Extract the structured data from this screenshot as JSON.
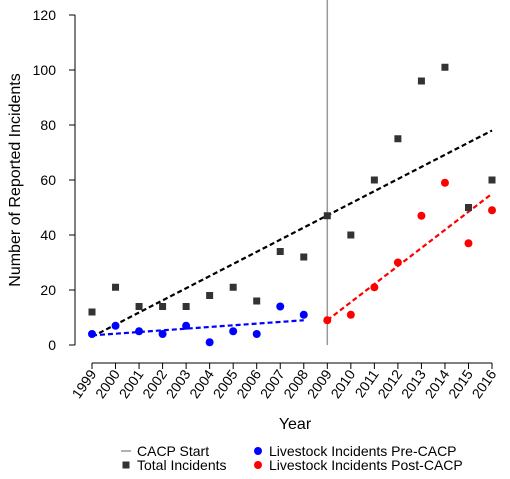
{
  "colors": {
    "total": "#333333",
    "pre": "#0000FF",
    "post": "#FF0000",
    "cacp_line": "#999999",
    "total_trend": "#000000",
    "pre_trend": "#0000FF",
    "post_trend": "#FF0000"
  },
  "chart_data": {
    "type": "scatter",
    "title": "",
    "xlabel": "Year",
    "ylabel": "Number of Reported Incidents",
    "xlim": [
      1999,
      2016
    ],
    "ylim": [
      0,
      120
    ],
    "x_ticks": [
      1999,
      2000,
      2001,
      2002,
      2003,
      2004,
      2005,
      2006,
      2007,
      2008,
      2009,
      2010,
      2011,
      2012,
      2013,
      2014,
      2015,
      2016
    ],
    "x_tick_labels": [
      "1999",
      "2000",
      "2001",
      "2002",
      "2003",
      "2004",
      "2005",
      "2006",
      "2007",
      "2008",
      "2009",
      "2010",
      "2011",
      "2012",
      "2013",
      "2014",
      "2015",
      "2016"
    ],
    "y_ticks": [
      0,
      20,
      40,
      60,
      80,
      100,
      120
    ],
    "y_tick_labels": [
      "0",
      "20",
      "40",
      "60",
      "80",
      "100",
      "120"
    ],
    "grid": false,
    "legend_position": "bottom",
    "cacp_start": 2009,
    "series": [
      {
        "name": "Total Incidents",
        "marker": "square",
        "color": "#333333",
        "x": [
          1999,
          2000,
          2001,
          2002,
          2003,
          2004,
          2005,
          2006,
          2007,
          2008,
          2009,
          2010,
          2011,
          2012,
          2013,
          2014,
          2015,
          2016
        ],
        "y": [
          12,
          21,
          14,
          14,
          14,
          18,
          21,
          16,
          34,
          32,
          47,
          40,
          60,
          75,
          96,
          101,
          50,
          60
        ]
      },
      {
        "name": "Livestock Incidents Pre-CACP",
        "marker": "circle",
        "color": "#0000FF",
        "x": [
          1999,
          2000,
          2001,
          2002,
          2003,
          2004,
          2005,
          2006,
          2007,
          2008
        ],
        "y": [
          4,
          7,
          5,
          4,
          7,
          1,
          5,
          4,
          14,
          11
        ]
      },
      {
        "name": "Livestock Incidents Post-CACP",
        "marker": "circle",
        "color": "#FF0000",
        "x": [
          2009,
          2010,
          2011,
          2012,
          2013,
          2014,
          2015,
          2016
        ],
        "y": [
          9,
          11,
          21,
          30,
          47,
          59,
          37,
          49
        ]
      }
    ],
    "trend_lines": [
      {
        "color": "#000000",
        "x": [
          1999,
          2016
        ],
        "y": [
          3,
          78
        ]
      },
      {
        "color": "#0000FF",
        "x": [
          1999,
          2008
        ],
        "y": [
          3.5,
          9
        ]
      },
      {
        "color": "#FF0000",
        "x": [
          2009,
          2016
        ],
        "y": [
          9,
          55
        ]
      }
    ],
    "legend": [
      {
        "label": "CACP Start",
        "symbol": "line",
        "color": "#999999"
      },
      {
        "label": "Livestock Incidents Pre-CACP",
        "symbol": "circle",
        "color": "#0000FF"
      },
      {
        "label": "Total Incidents",
        "symbol": "square",
        "color": "#333333"
      },
      {
        "label": "Livestock Incidents Post-CACP",
        "symbol": "circle",
        "color": "#FF0000"
      }
    ]
  }
}
